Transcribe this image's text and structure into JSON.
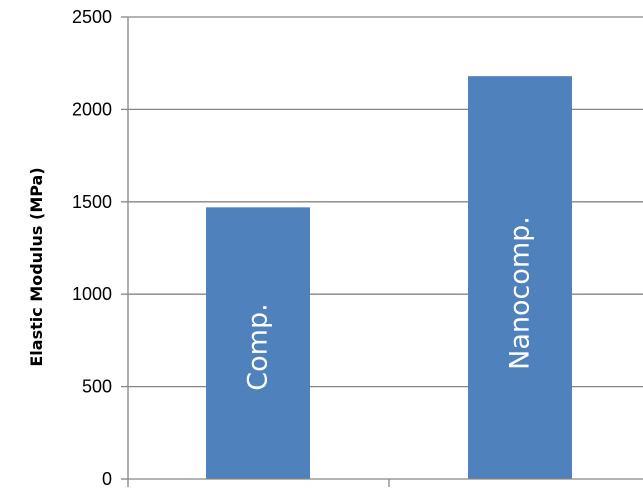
{
  "chart_data": {
    "type": "bar",
    "categories": [
      "Comp.",
      "Nanocomp."
    ],
    "values": [
      1470,
      2180
    ],
    "bar_labels": [
      "Comp.",
      "Nanocomp."
    ],
    "title": "",
    "xlabel": "",
    "ylabel": "Elastic Modulus (MPa)",
    "ylim": [
      0,
      2500
    ],
    "yticks": [
      0,
      500,
      1000,
      1500,
      2000,
      2500
    ],
    "ytick_labels": [
      "0",
      "500",
      "1000",
      "1500",
      "2000",
      "2500"
    ],
    "grid": true,
    "legend": "none",
    "bar_color": "#4F81BD",
    "gridline_color": "#868686"
  }
}
